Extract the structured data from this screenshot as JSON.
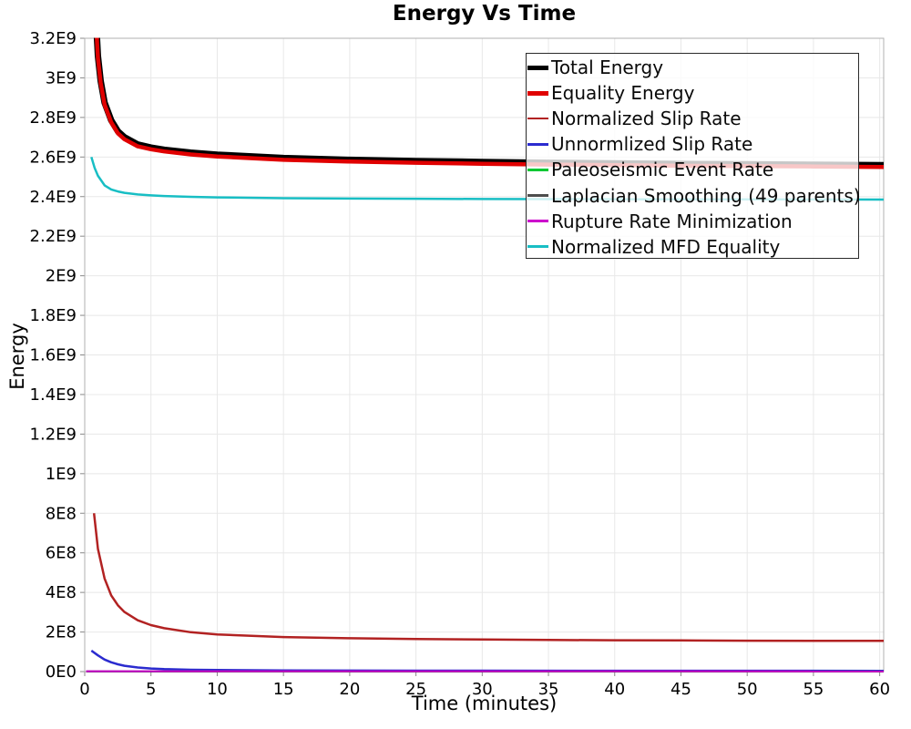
{
  "title": "Energy Vs Time",
  "chart_data": {
    "type": "line",
    "title": "Energy Vs Time",
    "xlabel": "Time (minutes)",
    "ylabel": "Energy",
    "xlim": [
      0,
      60.3
    ],
    "ylim": [
      0,
      3200000000.0
    ],
    "grid": true,
    "legend_position": "top-right",
    "x_ticks": [
      0,
      5,
      10,
      15,
      20,
      25,
      30,
      35,
      40,
      45,
      50,
      55,
      60
    ],
    "y_ticks": [
      0,
      200000000.0,
      400000000.0,
      600000000.0,
      800000000.0,
      1000000000.0,
      1200000000.0,
      1400000000.0,
      1600000000.0,
      1800000000.0,
      2000000000.0,
      2200000000.0,
      2400000000.0,
      2600000000.0,
      2800000000.0,
      3000000000.0,
      3200000000.0
    ],
    "y_tick_labels": [
      "0E0",
      "2E8",
      "4E8",
      "6E8",
      "8E8",
      "1E9",
      "1.2E9",
      "1.4E9",
      "1.6E9",
      "1.8E9",
      "2E9",
      "2.2E9",
      "2.4E9",
      "2.6E9",
      "2.8E9",
      "3E9",
      "3.2E9"
    ],
    "series": [
      {
        "name": "Total Energy",
        "color": "#000000",
        "width": 7,
        "thick": true,
        "x": [
          0.8,
          1,
          1.2,
          1.5,
          2,
          2.5,
          3,
          4,
          5,
          6,
          8,
          10,
          15,
          20,
          25,
          30,
          35,
          40,
          45,
          50,
          55,
          60.3
        ],
        "y": [
          3360000000.0,
          3110000000.0,
          2985000000.0,
          2875000000.0,
          2785000000.0,
          2730000000.0,
          2700000000.0,
          2663000000.0,
          2648000000.0,
          2637000000.0,
          2622000000.0,
          2612000000.0,
          2595000000.0,
          2586000000.0,
          2580000000.0,
          2575000000.0,
          2571000000.0,
          2568000000.0,
          2565000000.0,
          2563000000.0,
          2561000000.0,
          2559000000.0
        ]
      },
      {
        "name": "Equality Energy",
        "color": "#e00000",
        "width": 4.5,
        "thick": true,
        "x": [
          0.8,
          1,
          1.2,
          1.5,
          2,
          2.5,
          3,
          4,
          5,
          6,
          8,
          10,
          15,
          20,
          25,
          30,
          35,
          40,
          45,
          50,
          55,
          60.3
        ],
        "y": [
          3350000000.0,
          3100000000.0,
          2975000000.0,
          2865000000.0,
          2775000000.0,
          2720000000.0,
          2690000000.0,
          2654000000.0,
          2639000000.0,
          2628000000.0,
          2613000000.0,
          2603000000.0,
          2586000000.0,
          2577000000.0,
          2571000000.0,
          2566000000.0,
          2562000000.0,
          2559000000.0,
          2556000000.0,
          2554000000.0,
          2552000000.0,
          2550000000.0
        ]
      },
      {
        "name": "Normalized Slip Rate",
        "color": "#b22222",
        "width": 2.5,
        "thick": false,
        "x": [
          0.7,
          1,
          1.5,
          2,
          2.5,
          3,
          4,
          5,
          6,
          8,
          10,
          15,
          20,
          25,
          30,
          35,
          40,
          45,
          50,
          55,
          60.3
        ],
        "y": [
          800000000.0,
          620000000.0,
          470000000.0,
          385000000.0,
          335000000.0,
          301000000.0,
          259000000.0,
          235000000.0,
          219000000.0,
          199000000.0,
          188000000.0,
          174500000.0,
          168500000.0,
          165000000.0,
          162000000.0,
          160000000.0,
          158500000.0,
          157300000.0,
          156300000.0,
          155600000.0,
          155000000.0
        ]
      },
      {
        "name": "Unnormlized Slip Rate",
        "color": "#2b2bcf",
        "width": 2.5,
        "thick": false,
        "x": [
          0.5,
          1,
          1.5,
          2,
          2.5,
          3,
          4,
          5,
          6,
          8,
          10,
          15,
          20,
          25,
          30,
          40,
          50,
          60.3
        ],
        "y": [
          106000000.0,
          82000000.0,
          61000000.0,
          47000000.0,
          37000000.0,
          29500000.0,
          20500000.0,
          15500000.0,
          12500000.0,
          9200000.0,
          7600000.0,
          6000000.0,
          5200000.0,
          4700000.0,
          4400000.0,
          4100000.0,
          4000000.0,
          3900000.0
        ]
      },
      {
        "name": "Paleoseismic Event Rate",
        "color": "#00c832",
        "width": 2,
        "thick": false,
        "x": [
          0.1,
          60.3
        ],
        "y": [
          800000.0,
          600000.0
        ]
      },
      {
        "name": "Laplacian Smoothing (49 parents)",
        "color": "#4d4d4d",
        "width": 2,
        "thick": false,
        "x": [
          0.1,
          60.3
        ],
        "y": [
          400000.0,
          300000.0
        ]
      },
      {
        "name": "Rupture Rate Minimization",
        "color": "#cc00cc",
        "width": 2,
        "thick": false,
        "x": [
          0.1,
          60.3
        ],
        "y": [
          1800000.0,
          1500000.0
        ]
      },
      {
        "name": "Normalized MFD Equality",
        "color": "#18bec4",
        "width": 2.5,
        "thick": false,
        "x": [
          0.5,
          0.75,
          1,
          1.5,
          2,
          2.5,
          3,
          4,
          5,
          6,
          8,
          10,
          15,
          20,
          25,
          30,
          35,
          40,
          45,
          50,
          55,
          60.3
        ],
        "y": [
          2600000000.0,
          2545000000.0,
          2505000000.0,
          2457000000.0,
          2436000000.0,
          2426000000.0,
          2419000000.0,
          2411000000.0,
          2406000000.0,
          2403000000.0,
          2399000000.0,
          2396000000.0,
          2392000000.0,
          2390000000.0,
          2389000000.0,
          2388000000.0,
          2387300000.0,
          2386700000.0,
          2386200000.0,
          2385800000.0,
          2385500000.0,
          2385000000.0
        ]
      }
    ]
  },
  "colors": {
    "grid": "#e8e8e8",
    "plot_border": "#b0b0b0",
    "tick": "#888888",
    "text": "#000000",
    "legend_border": "#2a2a2a"
  }
}
